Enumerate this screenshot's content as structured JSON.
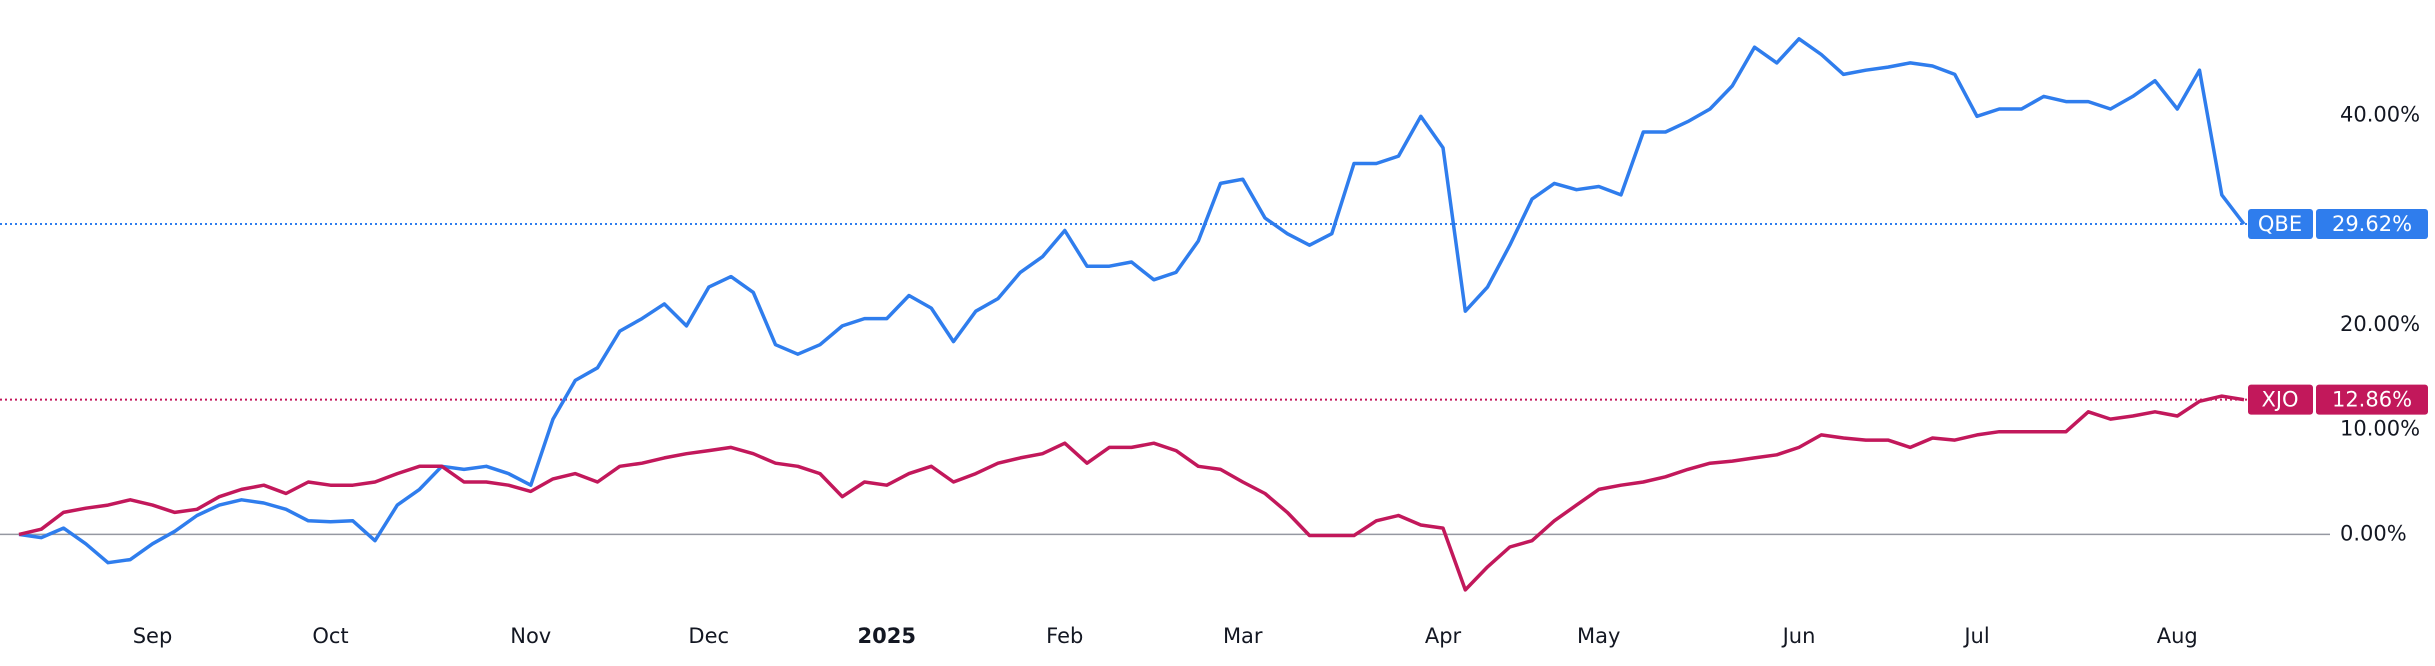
{
  "chart_data": {
    "type": "line",
    "categories": [
      null,
      null,
      null,
      null,
      null,
      null,
      "Sep",
      null,
      null,
      null,
      null,
      null,
      null,
      null,
      "Oct",
      null,
      null,
      null,
      null,
      null,
      null,
      null,
      null,
      "Nov",
      null,
      null,
      null,
      null,
      null,
      null,
      null,
      "Dec",
      null,
      null,
      null,
      null,
      null,
      null,
      null,
      "2025",
      null,
      null,
      null,
      null,
      null,
      null,
      null,
      "Feb",
      null,
      null,
      null,
      null,
      null,
      null,
      null,
      "Mar",
      null,
      null,
      null,
      null,
      null,
      null,
      null,
      null,
      "Apr",
      null,
      null,
      null,
      null,
      null,
      null,
      "May",
      null,
      null,
      null,
      null,
      null,
      null,
      null,
      null,
      "Jun",
      null,
      null,
      null,
      null,
      null,
      null,
      null,
      "Jul",
      null,
      null,
      null,
      null,
      null,
      null,
      null,
      null,
      "Aug",
      null,
      null,
      null
    ],
    "bold_categories": [
      "2025"
    ],
    "series": [
      {
        "name": "QBE",
        "color": "#2f7ded",
        "end_label": "29.62%",
        "values": [
          0,
          -0.3,
          0.6,
          -0.9,
          -2.7,
          -2.4,
          -0.9,
          0.3,
          1.8,
          2.8,
          3.3,
          3,
          2.4,
          1.3,
          1.2,
          1.3,
          -0.6,
          2.8,
          4.3,
          6.5,
          6.2,
          6.5,
          5.8,
          4.7,
          11,
          14.7,
          15.9,
          19.4,
          20.6,
          22,
          19.9,
          23.6,
          24.6,
          23.1,
          18.1,
          17.2,
          18.1,
          19.9,
          20.6,
          20.6,
          22.8,
          21.6,
          18.4,
          21.3,
          22.5,
          25,
          26.5,
          29,
          25.6,
          25.6,
          26,
          24.3,
          25,
          28,
          33.5,
          33.9,
          30.2,
          28.7,
          27.6,
          28.7,
          35.4,
          35.4,
          36.1,
          39.9,
          36.9,
          21.3,
          23.6,
          27.6,
          32,
          33.5,
          32.9,
          33.2,
          32.4,
          38.4,
          38.4,
          39.4,
          40.6,
          42.8,
          46.5,
          45,
          47.3,
          45.8,
          43.9,
          44.3,
          44.6,
          45,
          44.7,
          43.9,
          39.9,
          40.6,
          40.6,
          41.8,
          41.3,
          41.3,
          40.6,
          41.8,
          43.3,
          40.6,
          44.3,
          32.4,
          29.62
        ]
      },
      {
        "name": "XJO",
        "color": "#c2185b",
        "end_label": "12.86%",
        "values": [
          0,
          0.5,
          2.1,
          2.5,
          2.8,
          3.3,
          2.8,
          2.1,
          2.4,
          3.6,
          4.3,
          4.7,
          3.9,
          5,
          4.7,
          4.7,
          5,
          5.8,
          6.5,
          6.5,
          5,
          5,
          4.7,
          4.1,
          5.3,
          5.8,
          5,
          6.5,
          6.8,
          7.3,
          7.7,
          8,
          8.3,
          7.7,
          6.8,
          6.5,
          5.8,
          3.6,
          5,
          4.7,
          5.8,
          6.5,
          5,
          5.8,
          6.8,
          7.3,
          7.7,
          8.7,
          6.8,
          8.3,
          8.3,
          8.7,
          8,
          6.5,
          6.2,
          5,
          3.9,
          2.1,
          -0.1,
          -0.1,
          -0.1,
          1.3,
          1.8,
          0.9,
          0.6,
          -5.3,
          -3.1,
          -1.2,
          -0.6,
          1.3,
          2.8,
          4.3,
          4.7,
          5,
          5.5,
          6.2,
          6.8,
          7,
          7.3,
          7.6,
          8.3,
          9.5,
          9.2,
          9,
          9,
          8.3,
          9.2,
          9,
          9.5,
          9.8,
          9.8,
          9.8,
          9.8,
          11.7,
          11,
          11.3,
          11.7,
          11.3,
          12.7,
          13.2,
          12.86
        ]
      }
    ],
    "ylim": [
      -7.5,
      51
    ],
    "yticks": [
      {
        "value": 0,
        "label": "0.00%"
      },
      {
        "value": 10,
        "label": "10.00%"
      },
      {
        "value": 20,
        "label": "20.00%"
      },
      {
        "value": 40,
        "label": "40.00%"
      }
    ],
    "zero_line": true,
    "grid": false
  }
}
